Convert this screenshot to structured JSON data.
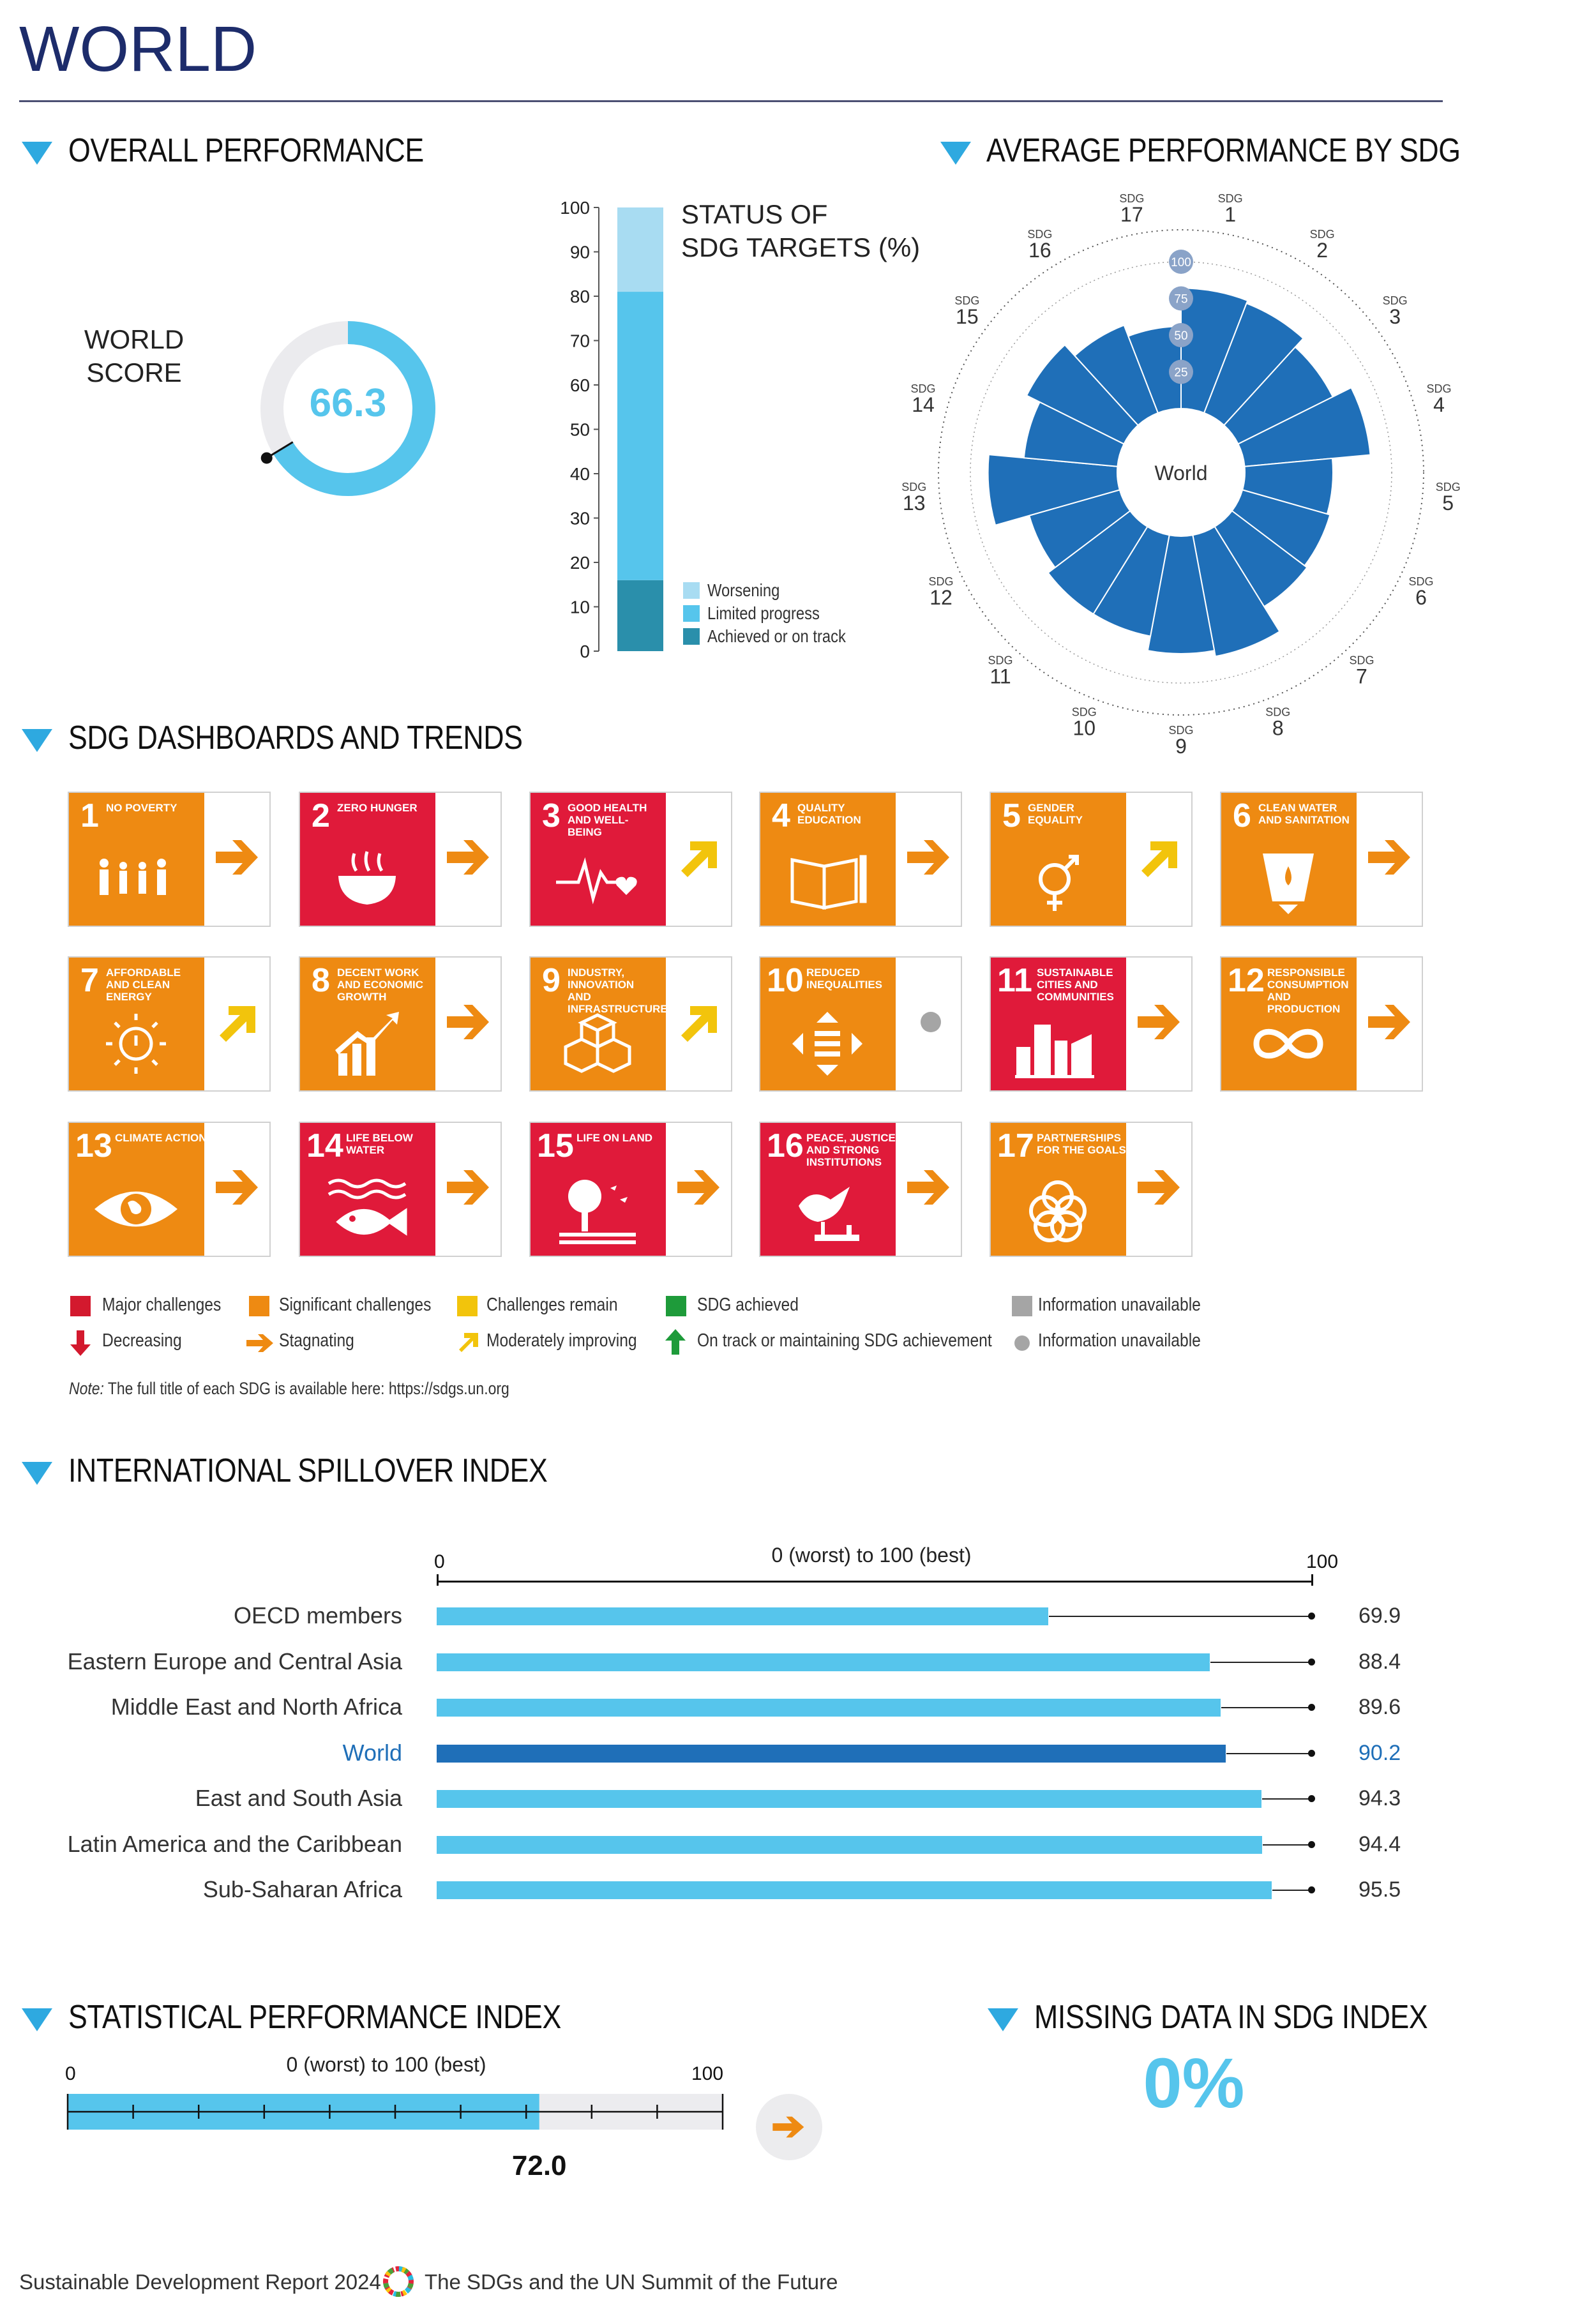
{
  "page_title": "WORLD",
  "overall": {
    "heading": "OVERALL PERFORMANCE",
    "score_label_line1": "WORLD",
    "score_label_line2": "SCORE",
    "score": "66.3",
    "score_fraction": 0.663
  },
  "status_chart": {
    "title_line1": "STATUS OF",
    "title_line2": "SDG TARGETS (%)",
    "ticks": [
      "100",
      "90",
      "80",
      "70",
      "60",
      "50",
      "40",
      "30",
      "20",
      "10",
      "0"
    ],
    "segments": [
      {
        "name": "Achieved or on track",
        "value": 16,
        "color": "#2a8fab"
      },
      {
        "name": "Limited progress",
        "value": 65,
        "color": "#56c5ec"
      },
      {
        "name": "Worsening",
        "value": 19,
        "color": "#a8dcf2"
      }
    ],
    "legend": [
      "Worsening",
      "Limited progress",
      "Achieved or on track"
    ]
  },
  "radar": {
    "heading": "AVERAGE PERFORMANCE BY SDG",
    "center_label": "World",
    "ring_labels": [
      "100",
      "75",
      "50",
      "25"
    ],
    "sdg_prefix": "SDG",
    "sdg_numbers": [
      "1",
      "2",
      "3",
      "4",
      "5",
      "6",
      "7",
      "8",
      "9",
      "10",
      "11",
      "12",
      "13",
      "14",
      "15",
      "16",
      "17"
    ],
    "scores": [
      82,
      80,
      72,
      86,
      60,
      62,
      64,
      84,
      80,
      70,
      70,
      64,
      88,
      64,
      74,
      64,
      56
    ]
  },
  "dashboards": {
    "heading": "SDG DASHBOARDS AND TRENDS",
    "tiles": [
      {
        "num": "1",
        "name": "NO POVERTY",
        "color": "#ee8a12",
        "trend": "stagnating"
      },
      {
        "num": "2",
        "name": "ZERO HUNGER",
        "color": "#e01a3a",
        "trend": "stagnating"
      },
      {
        "num": "3",
        "name": "GOOD HEALTH AND WELL-BEING",
        "color": "#e01a3a",
        "trend": "moderately-improving"
      },
      {
        "num": "4",
        "name": "QUALITY EDUCATION",
        "color": "#ee8a12",
        "trend": "stagnating"
      },
      {
        "num": "5",
        "name": "GENDER EQUALITY",
        "color": "#ee8a12",
        "trend": "moderately-improving"
      },
      {
        "num": "6",
        "name": "CLEAN WATER AND SANITATION",
        "color": "#ee8a12",
        "trend": "stagnating"
      },
      {
        "num": "7",
        "name": "AFFORDABLE AND CLEAN ENERGY",
        "color": "#ee8a12",
        "trend": "moderately-improving"
      },
      {
        "num": "8",
        "name": "DECENT WORK AND ECONOMIC GROWTH",
        "color": "#ee8a12",
        "trend": "stagnating"
      },
      {
        "num": "9",
        "name": "INDUSTRY, INNOVATION AND INFRASTRUCTURE",
        "color": "#ee8a12",
        "trend": "moderately-improving"
      },
      {
        "num": "10",
        "name": "REDUCED INEQUALITIES",
        "color": "#ee8a12",
        "trend": "information-unavailable"
      },
      {
        "num": "11",
        "name": "SUSTAINABLE CITIES AND COMMUNITIES",
        "color": "#e01a3a",
        "trend": "stagnating"
      },
      {
        "num": "12",
        "name": "RESPONSIBLE CONSUMPTION AND PRODUCTION",
        "color": "#ee8a12",
        "trend": "stagnating"
      },
      {
        "num": "13",
        "name": "CLIMATE ACTION",
        "color": "#ee8a12",
        "trend": "stagnating"
      },
      {
        "num": "14",
        "name": "LIFE BELOW WATER",
        "color": "#e01a3a",
        "trend": "stagnating"
      },
      {
        "num": "15",
        "name": "LIFE ON LAND",
        "color": "#e01a3a",
        "trend": "stagnating"
      },
      {
        "num": "16",
        "name": "PEACE, JUSTICE AND STRONG INSTITUTIONS",
        "color": "#e01a3a",
        "trend": "stagnating"
      },
      {
        "num": "17",
        "name": "PARTNERSHIPS FOR THE GOALS",
        "color": "#ee8a12",
        "trend": "stagnating"
      }
    ],
    "legend": {
      "major": "Major challenges",
      "significant": "Significant challenges",
      "remain": "Challenges remain",
      "achieved": "SDG achieved",
      "info_sq": "Information unavailable",
      "decreasing": "Decreasing",
      "stagnating": "Stagnating",
      "improving": "Moderately improving",
      "on_track": "On track or maintaining SDG achievement",
      "info_dot": "Information unavailable"
    },
    "note_prefix": "Note:",
    "note_text": "The full title of each SDG is available here: https://sdgs.un.org"
  },
  "spillover": {
    "heading": "INTERNATIONAL SPILLOVER INDEX",
    "axis_min": "0",
    "axis_max": "100",
    "axis_caption": "0 (worst) to 100 (best)",
    "rows": [
      {
        "label": "OECD members",
        "value": 69.9,
        "display": "69.9",
        "highlight": false
      },
      {
        "label": "Eastern Europe and Central Asia",
        "value": 88.4,
        "display": "88.4",
        "highlight": false
      },
      {
        "label": "Middle East and North Africa",
        "value": 89.6,
        "display": "89.6",
        "highlight": false
      },
      {
        "label": "World",
        "value": 90.2,
        "display": "90.2",
        "highlight": true
      },
      {
        "label": "East and South Asia",
        "value": 94.3,
        "display": "94.3",
        "highlight": false
      },
      {
        "label": "Latin America and the Caribbean",
        "value": 94.4,
        "display": "94.4",
        "highlight": false
      },
      {
        "label": "Sub-Saharan Africa",
        "value": 95.5,
        "display": "95.5",
        "highlight": false
      }
    ]
  },
  "spi": {
    "heading": "STATISTICAL PERFORMANCE INDEX",
    "axis_min": "0",
    "axis_max": "100",
    "axis_caption": "0 (worst) to 100 (best)",
    "value": 72.0,
    "display": "72.0",
    "trend": "stagnating"
  },
  "missing": {
    "heading": "MISSING DATA IN SDG INDEX",
    "value": "0%"
  },
  "footer": {
    "left": "Sustainable Development Report 2024",
    "right": "The SDGs and the UN Summit of the Future"
  },
  "colors": {
    "accent": "#2ea9e0",
    "bar": "#56c5ec",
    "world_bar": "#1f6fb8",
    "radar_fill": "#1f6fb8",
    "major": "#d3192e",
    "significant": "#ee8a12",
    "remain": "#f2c40c",
    "achieved": "#1e9b3a",
    "info": "#a5a5a5"
  }
}
